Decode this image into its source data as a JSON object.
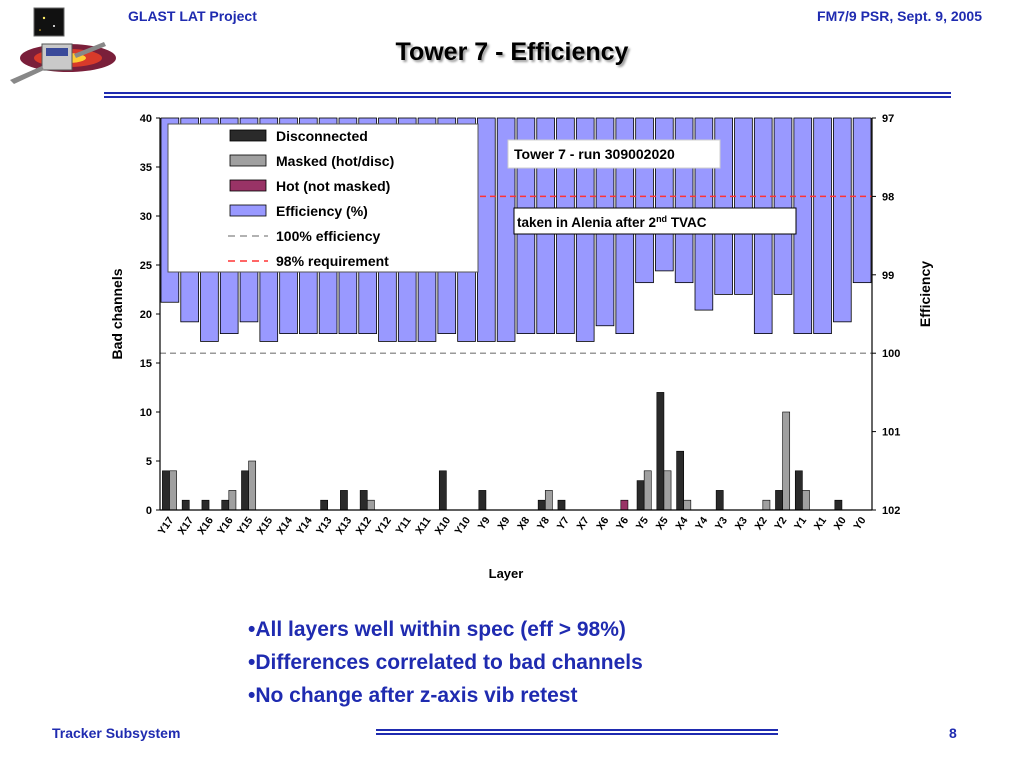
{
  "header": {
    "left": "GLAST LAT Project",
    "right": "FM7/9 PSR, Sept. 9, 2005"
  },
  "slide_title": "Tower 7 - Efficiency",
  "bullets": [
    "•All layers well within spec (eff > 98%)",
    "•Differences correlated to bad channels",
    "•No change after z-axis vib retest"
  ],
  "footer": {
    "left": "Tracker Subsystem",
    "page_number": "8"
  },
  "colors": {
    "brand": "#1f2bb0",
    "disconnected": "#2a2a2a",
    "masked": "#a0a0a0",
    "hot": "#993366",
    "efficiency": "#9999ff",
    "req_line": "#ff3333",
    "full_eff_line": "#999999"
  },
  "chart_data": {
    "type": "bar",
    "annotation_run": "Tower 7 - run 309002020",
    "annotation_note": {
      "text": "taken in Alenia after 2",
      "sup": "nd",
      "tail": " TVAC"
    },
    "xlabel": "Layer",
    "ylabel": "Bad channels",
    "y2label": "Efficiency",
    "ylim": [
      0,
      40
    ],
    "yticks": [
      0,
      5,
      10,
      15,
      20,
      25,
      30,
      35,
      40
    ],
    "y2lim_percent": [
      102,
      97
    ],
    "y2ticks": [
      {
        "label": "97",
        "value": 97
      },
      {
        "label": "98",
        "value": 98
      },
      {
        "label": "99",
        "value": 99
      },
      {
        "label": "100",
        "value": 100
      },
      {
        "label": "101",
        "value": 101
      },
      {
        "label": "102",
        "value": 102
      }
    ],
    "legend_position": "top-left",
    "legend": [
      {
        "label": "Disconnected",
        "kind": "box",
        "color": "#2a2a2a"
      },
      {
        "label": "Masked (hot/disc)",
        "kind": "box",
        "color": "#a0a0a0"
      },
      {
        "label": "Hot (not masked)",
        "kind": "box",
        "color": "#993366"
      },
      {
        "label": "Efficiency (%)",
        "kind": "box",
        "color": "#9999ff"
      },
      {
        "label": "100% efficiency",
        "kind": "line",
        "color": "#999999"
      },
      {
        "label": "98% requirement",
        "kind": "line",
        "color": "#ff3333"
      }
    ],
    "categories": [
      "Y17",
      "X17",
      "X16",
      "Y16",
      "Y15",
      "X15",
      "X14",
      "Y14",
      "Y13",
      "X13",
      "X12",
      "Y12",
      "Y11",
      "X11",
      "X10",
      "Y10",
      "Y9",
      "X9",
      "X8",
      "Y8",
      "Y7",
      "X7",
      "X6",
      "Y6",
      "Y5",
      "X5",
      "X4",
      "Y4",
      "Y3",
      "X3",
      "X2",
      "Y2",
      "Y1",
      "X1",
      "X0",
      "Y0"
    ],
    "series": [
      {
        "name": "Disconnected",
        "values": [
          4,
          1,
          1,
          1,
          4,
          0,
          0,
          0,
          1,
          2,
          2,
          0,
          0,
          0,
          4,
          0,
          2,
          0,
          0,
          1,
          1,
          0,
          0,
          0,
          3,
          12,
          6,
          0,
          2,
          0,
          0,
          2,
          4,
          0,
          1,
          0
        ]
      },
      {
        "name": "Masked (hot/disc)",
        "values": [
          4,
          0,
          0,
          2,
          5,
          0,
          0,
          0,
          0,
          0,
          1,
          0,
          0,
          0,
          0,
          0,
          0,
          0,
          0,
          2,
          0,
          0,
          0,
          0,
          4,
          4,
          1,
          0,
          0,
          0,
          1,
          10,
          2,
          0,
          0,
          0
        ]
      },
      {
        "name": "Hot (not masked)",
        "values": [
          0,
          0,
          0,
          0,
          0,
          0,
          0,
          0,
          0,
          0,
          0,
          0,
          0,
          0,
          0,
          0,
          0,
          0,
          0,
          0,
          0,
          0,
          0,
          1,
          0,
          0,
          0,
          0,
          0,
          0,
          0,
          0,
          0,
          0,
          0,
          0
        ]
      },
      {
        "name": "Efficiency (%)",
        "values": [
          99.35,
          99.6,
          99.85,
          99.75,
          99.6,
          99.85,
          99.75,
          99.75,
          99.75,
          99.75,
          99.75,
          99.85,
          99.85,
          99.85,
          99.75,
          99.85,
          99.85,
          99.85,
          99.75,
          99.75,
          99.75,
          99.85,
          99.65,
          99.75,
          99.1,
          98.95,
          99.1,
          99.45,
          99.25,
          99.25,
          99.75,
          99.25,
          99.75,
          99.75,
          99.6,
          99.1
        ]
      }
    ],
    "reference_lines": [
      {
        "name": "100% efficiency",
        "value": 100
      },
      {
        "name": "98% requirement",
        "value": 98
      }
    ]
  }
}
